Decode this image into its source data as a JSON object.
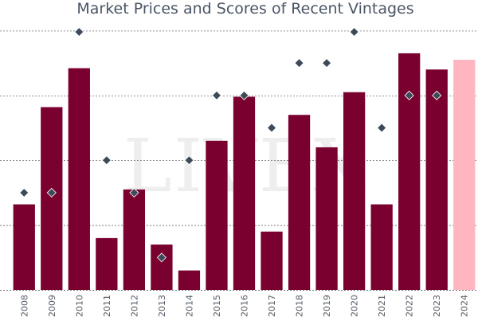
{
  "chart_data": {
    "type": "bar",
    "title": "Market Prices and Scores of Recent Vintages",
    "watermark": "LIVEX",
    "categories": [
      "2008",
      "2009",
      "2010",
      "2011",
      "2012",
      "2013",
      "2014",
      "2015",
      "2016",
      "2017",
      "2018",
      "2019",
      "2020",
      "2021",
      "2022",
      "2023",
      "2024"
    ],
    "ylim": [
      0,
      4.3
    ],
    "grid": true,
    "series": [
      {
        "kind": "bar",
        "values": [
          1.32,
          2.82,
          3.42,
          0.8,
          1.55,
          0.7,
          0.3,
          2.3,
          2.98,
          0.9,
          2.7,
          2.2,
          3.05,
          1.32,
          3.65,
          3.4,
          3.55
        ],
        "colors": [
          "#7a0030",
          "#7a0030",
          "#7a0030",
          "#7a0030",
          "#7a0030",
          "#7a0030",
          "#7a0030",
          "#7a0030",
          "#7a0030",
          "#7a0030",
          "#7a0030",
          "#7a0030",
          "#7a0030",
          "#7a0030",
          "#7a0030",
          "#7a0030",
          "#ffb6c1"
        ]
      },
      {
        "kind": "scatter",
        "marker": "diamond",
        "values": [
          1.5,
          1.5,
          3.98,
          2.0,
          1.5,
          0.5,
          2.0,
          3.0,
          3.0,
          2.5,
          3.5,
          3.5,
          3.98,
          2.5,
          3.0,
          3.0,
          null
        ],
        "color": "#3d4a5a"
      }
    ]
  }
}
